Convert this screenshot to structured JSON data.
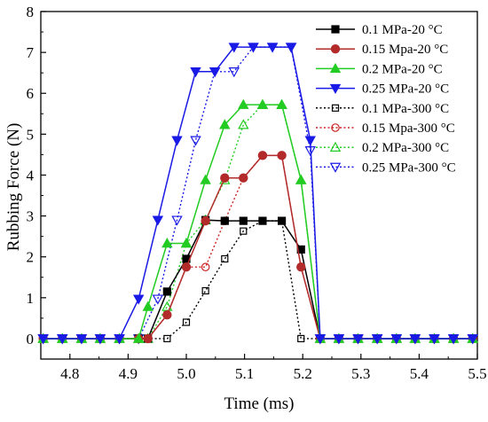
{
  "chart_data": {
    "type": "line",
    "title": "",
    "xlabel": "Time (ms)",
    "ylabel": "Rubbing Force (N)",
    "xlim": [
      4.75,
      5.5
    ],
    "ylim": [
      -0.5,
      8
    ],
    "x_ticks": [
      4.8,
      4.9,
      5.0,
      5.1,
      5.2,
      5.3,
      5.4,
      5.5
    ],
    "x_tick_labels": [
      "4.8",
      "4.9",
      "5.0",
      "5.1",
      "5.2",
      "5.3",
      "5.4",
      "5.5"
    ],
    "y_ticks": [
      0,
      1,
      2,
      3,
      4,
      5,
      6,
      7,
      8
    ],
    "y_tick_labels": [
      "0",
      "1",
      "2",
      "3",
      "4",
      "5",
      "6",
      "7",
      "8"
    ],
    "grid": false,
    "legend_position": "top-right",
    "series": [
      {
        "name": "0.1 MPa-20 °C",
        "color": "#000000",
        "marker": "square",
        "filled": true,
        "line": "solid",
        "x": [
          4.754,
          4.787,
          4.82,
          4.852,
          4.885,
          4.918,
          4.934,
          4.967,
          5.0,
          5.033,
          5.066,
          5.098,
          5.131,
          5.164,
          5.197,
          5.23,
          5.262,
          5.295,
          5.328,
          5.361,
          5.393,
          5.426,
          5.459,
          5.492
        ],
        "y": [
          0,
          0,
          0,
          0,
          0,
          0,
          0,
          1.15,
          1.95,
          2.9,
          2.88,
          2.88,
          2.88,
          2.88,
          2.18,
          0,
          0,
          0,
          0,
          0,
          0,
          0,
          0,
          0
        ]
      },
      {
        "name": "0.15 Mpa-20 °C",
        "color": "#b32a2a",
        "marker": "circle",
        "filled": true,
        "line": "solid",
        "x": [
          4.754,
          4.787,
          4.82,
          4.852,
          4.885,
          4.918,
          4.934,
          4.967,
          5.0,
          5.033,
          5.066,
          5.098,
          5.131,
          5.164,
          5.197,
          5.23,
          5.262,
          5.295,
          5.328,
          5.361,
          5.393,
          5.426,
          5.459,
          5.492
        ],
        "y": [
          0,
          0,
          0,
          0,
          0,
          0,
          0,
          0.58,
          1.75,
          2.88,
          3.93,
          3.93,
          4.48,
          4.48,
          1.75,
          0,
          0,
          0,
          0,
          0,
          0,
          0,
          0,
          0
        ]
      },
      {
        "name": "0.2 MPa-20 °C",
        "color": "#22cc22",
        "marker": "triangle-up",
        "filled": true,
        "line": "solid",
        "x": [
          4.754,
          4.787,
          4.82,
          4.852,
          4.885,
          4.918,
          4.934,
          4.967,
          5.0,
          5.033,
          5.066,
          5.098,
          5.131,
          5.164,
          5.197,
          5.23,
          5.262,
          5.295,
          5.328,
          5.361,
          5.393,
          5.426,
          5.459,
          5.492
        ],
        "y": [
          0,
          0,
          0,
          0,
          0,
          0,
          0.78,
          2.33,
          2.33,
          3.88,
          5.23,
          5.72,
          5.72,
          5.72,
          3.88,
          0,
          0,
          0,
          0,
          0,
          0,
          0,
          0,
          0
        ]
      },
      {
        "name": "0.25 MPa-20 °C",
        "color": "#1a1ae6",
        "marker": "triangle-down",
        "filled": true,
        "line": "solid",
        "x": [
          4.754,
          4.787,
          4.82,
          4.852,
          4.885,
          4.918,
          4.951,
          4.984,
          5.016,
          5.049,
          5.082,
          5.115,
          5.148,
          5.18,
          5.213,
          5.23,
          5.262,
          5.295,
          5.328,
          5.361,
          5.393,
          5.426,
          5.459,
          5.492
        ],
        "y": [
          0,
          0,
          0,
          0,
          0,
          0.97,
          2.9,
          4.85,
          6.53,
          6.53,
          7.13,
          7.13,
          7.13,
          7.13,
          4.85,
          0,
          0,
          0,
          0,
          0,
          0,
          0,
          0,
          0
        ]
      },
      {
        "name": "0.1 MPa-300 °C",
        "color": "#000000",
        "marker": "square",
        "filled": false,
        "line": "dotted",
        "x": [
          4.754,
          4.787,
          4.82,
          4.852,
          4.885,
          4.918,
          4.934,
          4.967,
          5.0,
          5.033,
          5.066,
          5.098,
          5.131,
          5.164,
          5.197,
          5.23,
          5.262,
          5.295,
          5.328,
          5.361,
          5.393,
          5.426,
          5.459,
          5.492
        ],
        "y": [
          0,
          0,
          0,
          0,
          0,
          0,
          0,
          0,
          0.4,
          1.17,
          1.95,
          2.63,
          2.88,
          2.88,
          0,
          0,
          0,
          0,
          0,
          0,
          0,
          0,
          0,
          0
        ]
      },
      {
        "name": "0.15 Mpa-300 °C",
        "color": "#cc2222",
        "marker": "circle",
        "filled": false,
        "line": "dotted",
        "x": [
          4.754,
          4.787,
          4.82,
          4.852,
          4.885,
          4.918,
          4.934,
          4.967,
          5.0,
          5.033,
          5.066,
          5.098,
          5.131,
          5.164,
          5.197,
          5.23,
          5.262,
          5.295,
          5.328,
          5.361,
          5.393,
          5.426,
          5.459,
          5.492
        ],
        "y": [
          0,
          0,
          0,
          0,
          0,
          0,
          0,
          0.58,
          1.75,
          1.75,
          2.88,
          3.93,
          4.48,
          4.48,
          1.75,
          0,
          0,
          0,
          0,
          0,
          0,
          0,
          0,
          0
        ]
      },
      {
        "name": "0.2 MPa-300 °C",
        "color": "#22cc22",
        "marker": "triangle-up",
        "filled": false,
        "line": "dotted",
        "x": [
          4.754,
          4.787,
          4.82,
          4.852,
          4.885,
          4.918,
          4.934,
          4.967,
          5.0,
          5.033,
          5.066,
          5.098,
          5.131,
          5.164,
          5.197,
          5.23,
          5.262,
          5.295,
          5.328,
          5.361,
          5.393,
          5.426,
          5.459,
          5.492
        ],
        "y": [
          0,
          0,
          0,
          0,
          0,
          0,
          0,
          0.78,
          2.33,
          2.9,
          3.88,
          5.23,
          5.72,
          5.72,
          3.88,
          0,
          0,
          0,
          0,
          0,
          0,
          0,
          0,
          0
        ]
      },
      {
        "name": "0.25 MPa-300 °C",
        "color": "#1a1ae6",
        "marker": "triangle-down",
        "filled": false,
        "line": "dotted",
        "x": [
          4.754,
          4.787,
          4.82,
          4.852,
          4.885,
          4.918,
          4.951,
          4.984,
          5.016,
          5.049,
          5.082,
          5.115,
          5.148,
          5.18,
          5.213,
          5.23,
          5.262,
          5.295,
          5.328,
          5.361,
          5.393,
          5.426,
          5.459,
          5.492
        ],
        "y": [
          0,
          0,
          0,
          0,
          0,
          0,
          0.97,
          2.9,
          4.85,
          6.53,
          6.53,
          7.13,
          7.13,
          7.13,
          4.6,
          0,
          0,
          0,
          0,
          0,
          0,
          0,
          0,
          0
        ]
      }
    ]
  }
}
